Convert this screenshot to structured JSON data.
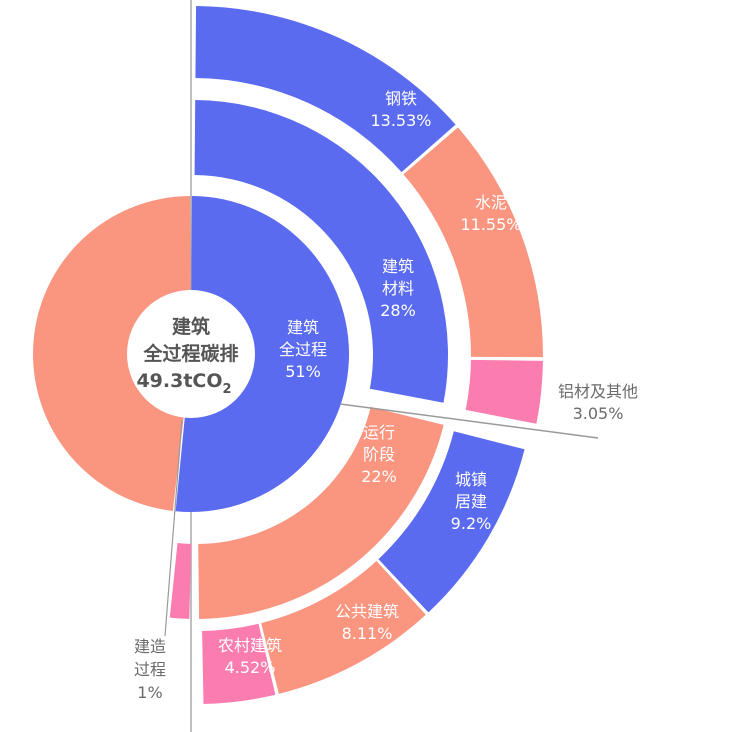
{
  "chart_data": {
    "type": "pie",
    "subtype": "multi-level donut (sunburst, right half exploded)",
    "title": "建筑全过程碳排 49.3tCO2",
    "center_label": [
      "建筑",
      "全过程碳排",
      "49.3tCO",
      "2"
    ],
    "colors": {
      "blue": "#5B6BF0",
      "salmon": "#FA9580",
      "pink": "#FB7DB0",
      "line": "#999999",
      "label_dark": "#666666"
    },
    "rings": [
      {
        "name": "inner",
        "segments": [
          {
            "label": [
              "建筑",
              "全过程",
              "51%"
            ],
            "value": 51,
            "color": "#5B6BF0"
          },
          {
            "label": [],
            "value": 49,
            "color": "#FA9580"
          }
        ]
      },
      {
        "name": "middle",
        "segments": [
          {
            "label": [
              "建筑",
              "材料",
              "28%"
            ],
            "value": 28,
            "color": "#5B6BF0"
          },
          {
            "label": [
              "运行",
              "阶段",
              "22%"
            ],
            "value": 22,
            "color": "#FA9580"
          },
          {
            "label": [
              "建造",
              "过程",
              "1%"
            ],
            "value": 1,
            "color": "#FB7DB0"
          }
        ]
      },
      {
        "name": "outer",
        "segments": [
          {
            "label": [
              "钢铁",
              "13.53%"
            ],
            "value": 13.53,
            "color": "#5B6BF0"
          },
          {
            "label": [
              "水泥",
              "11.55%"
            ],
            "value": 11.55,
            "color": "#FA9580"
          },
          {
            "label": [
              "铝材及其他",
              "3.05%"
            ],
            "value": 3.05,
            "color": "#FB7DB0"
          },
          {
            "label": [
              "城镇",
              "居建",
              "9.2%"
            ],
            "value": 9.2,
            "color": "#5B6BF0"
          },
          {
            "label": [
              "公共建筑",
              "8.11%"
            ],
            "value": 8.11,
            "color": "#FA9580"
          },
          {
            "label": [
              "农村建筑",
              "4.52%"
            ],
            "value": 4.52,
            "color": "#FB7DB0"
          }
        ]
      }
    ],
    "values_summary": {
      "建筑全过程": "51%",
      "建筑材料": "28%",
      "运行阶段": "22%",
      "建造过程": "1%",
      "钢铁": "13.53%",
      "水泥": "11.55%",
      "铝材及其他": "3.05%",
      "城镇居建": "9.2%",
      "公共建筑": "8.11%",
      "农村建筑": "4.52%"
    }
  },
  "labels": {
    "center": {
      "line1": "建筑",
      "line2": "全过程碳排",
      "line3": "49.3tCO",
      "sub": "2"
    },
    "inner_blue": {
      "line1": "建筑",
      "line2": "全过程",
      "line3": "51%"
    },
    "materials": {
      "line1": "建筑",
      "line2": "材料",
      "line3": "28%"
    },
    "operation": {
      "line1": "运行",
      "line2": "阶段",
      "line3": "22%"
    },
    "construction": {
      "line1": "建造",
      "line2": "过程",
      "line3": "1%"
    },
    "steel": {
      "line1": "钢铁",
      "line2": "13.53%"
    },
    "cement": {
      "line1": "水泥",
      "line2": "11.55%"
    },
    "aluminum": {
      "line1": "铝材及其他",
      "line2": "3.05%"
    },
    "urban": {
      "line1": "城镇",
      "line2": "居建",
      "line3": "9.2%"
    },
    "public": {
      "line1": "公共建筑",
      "line2": "8.11%"
    },
    "rural": {
      "line1": "农村建筑",
      "line2": "4.52%"
    }
  }
}
